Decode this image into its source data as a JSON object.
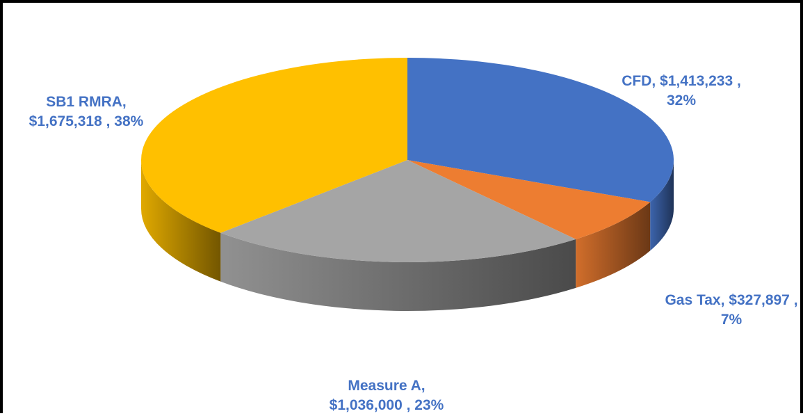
{
  "chart_data": {
    "type": "pie",
    "style": "3d",
    "slices": [
      {
        "name": "CFD",
        "value": 1413233,
        "value_text": "$1,413,233",
        "percent_text": "32%",
        "color": "#4472C4"
      },
      {
        "name": "Gas Tax",
        "value": 327897,
        "value_text": "$327,897",
        "percent_text": "7%",
        "color": "#ED7D31"
      },
      {
        "name": "Measure A",
        "value": 1036000,
        "value_text": "$1,036,000",
        "percent_text": "23%",
        "color": "#A5A5A5"
      },
      {
        "name": "SB1 RMRA",
        "value": 1675318,
        "value_text": "$1,675,318",
        "percent_text": "38%",
        "color": "#FFC000"
      }
    ],
    "label_color": "#4472C4"
  }
}
